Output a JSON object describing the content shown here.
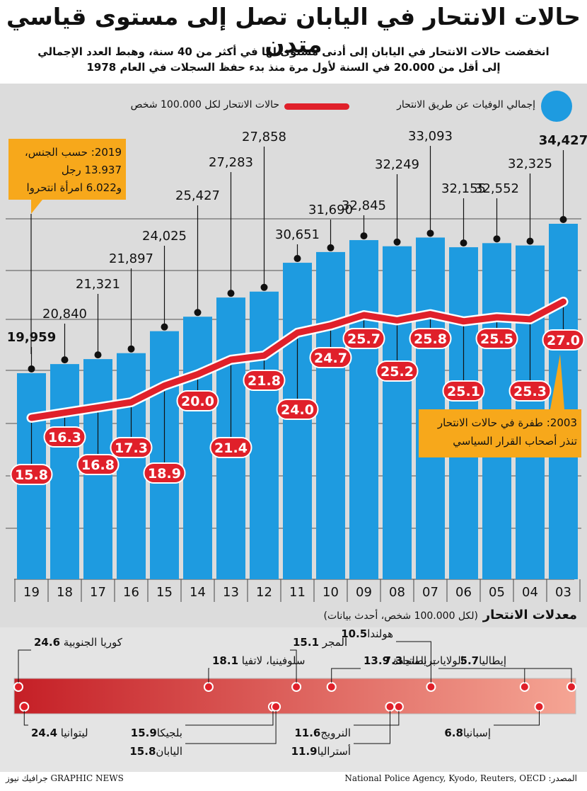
{
  "title": "حالات الانتحار في اليابان تصل إلى مستوى قياسي متدن",
  "subtitle_line1": "انخفضت حالات الانتحار في اليابان إلى أدنى مستوى لها في أكثر من 40 سنة، وهبط العدد الإجمالي",
  "subtitle_line2": "إلى أقل من 20.000 في السنة لأول مرة منذ بدء حفظ السجلات في العام 1978",
  "legend": {
    "total_label": "إجمالي الوفيات عن طريق الانتحار",
    "rate_label": "حالات الانتحار لكل 100.000 شخص"
  },
  "colors": {
    "bar": "#1e9be0",
    "line": "#e0202a",
    "callout": "#f7a81b",
    "panel": "#dcdcdc"
  },
  "annotations": {
    "y2019_year": "2019",
    "y2019_line1": "حسب الجنس،",
    "y2019_line2": "13.937 رجل",
    "y2019_line3": "و6.022 امرأة انتحروا",
    "y2003_year": "2003",
    "y2003_line1": "طفرة في حالات الانتحار",
    "y2003_line2": "تنذر أصحاب القرار السياسي"
  },
  "rates_section": {
    "title": "معدلات الانتحار",
    "note": "(لكل 100.000 شخص، أحدث بيانات)"
  },
  "chart_data": [
    {
      "type": "bar",
      "series": [
        {
          "name": "إجمالي الوفيات عن طريق الانتحار",
          "values": [
            19959,
            20840,
            21321,
            21897,
            24025,
            25427,
            27283,
            27858,
            30651,
            31690,
            32845,
            32249,
            33093,
            32155,
            32552,
            32325,
            34427
          ],
          "labels": [
            "19,959",
            "20,840",
            "21,321",
            "21,897",
            "24,025",
            "25,427",
            "27,283",
            "27,858",
            "30,651",
            "31,690",
            "32,845",
            "32,249",
            "33,093",
            "32,155",
            "32,552",
            "32,325",
            "34,427"
          ]
        },
        {
          "name": "حالات الانتحار لكل 100.000 شخص",
          "values": [
            15.8,
            16.3,
            16.8,
            17.3,
            18.9,
            20.0,
            21.4,
            21.8,
            24.0,
            24.7,
            25.7,
            25.2,
            25.8,
            25.1,
            25.5,
            25.3,
            27.0
          ],
          "labels": [
            "15.8",
            "16.3",
            "16.8",
            "17.3",
            "18.9",
            "20.0",
            "21.4",
            "21.8",
            "24.0",
            "24.7",
            "25.7",
            "25.2",
            "25.8",
            "25.1",
            "25.5",
            "25.3",
            "27.0"
          ]
        }
      ],
      "categories": [
        "19",
        "18",
        "17",
        "16",
        "15",
        "14",
        "13",
        "12",
        "11",
        "10",
        "09",
        "08",
        "07",
        "06",
        "05",
        "04",
        "03"
      ],
      "grid": true
    },
    {
      "type": "scatter",
      "points": [
        {
          "name": "كوريا الجنوبية",
          "value": 24.6,
          "label": "24.6"
        },
        {
          "name": "ليتوانيا",
          "value": 24.4,
          "label": "24.4"
        },
        {
          "name": "سلوفينيا، لاتفيا",
          "value": 18.1,
          "label": "18.1"
        },
        {
          "name": "بلجيكا",
          "value": 15.9,
          "label": "15.9"
        },
        {
          "name": "اليابان",
          "value": 15.8,
          "label": "15.8"
        },
        {
          "name": "المجر",
          "value": 15.1,
          "label": "15.1"
        },
        {
          "name": "الولايات المتحدة",
          "value": 13.9,
          "label": "13.9"
        },
        {
          "name": "أستراليا",
          "value": 11.9,
          "label": "11.9"
        },
        {
          "name": "النرويج",
          "value": 11.6,
          "label": "11.6"
        },
        {
          "name": "هولندا",
          "value": 10.5,
          "label": "10.5"
        },
        {
          "name": "بريطانيا",
          "value": 7.3,
          "label": "7.3"
        },
        {
          "name": "إسبانيا",
          "value": 6.8,
          "label": "6.8"
        },
        {
          "name": "إيطاليا",
          "value": 5.7,
          "label": "5.7"
        }
      ]
    }
  ],
  "footer": {
    "source": "المصدر: National Police Agency, Kyodo, Reuters, OECD",
    "credit": "GRAPHIC NEWS جرافيك نيوز"
  }
}
